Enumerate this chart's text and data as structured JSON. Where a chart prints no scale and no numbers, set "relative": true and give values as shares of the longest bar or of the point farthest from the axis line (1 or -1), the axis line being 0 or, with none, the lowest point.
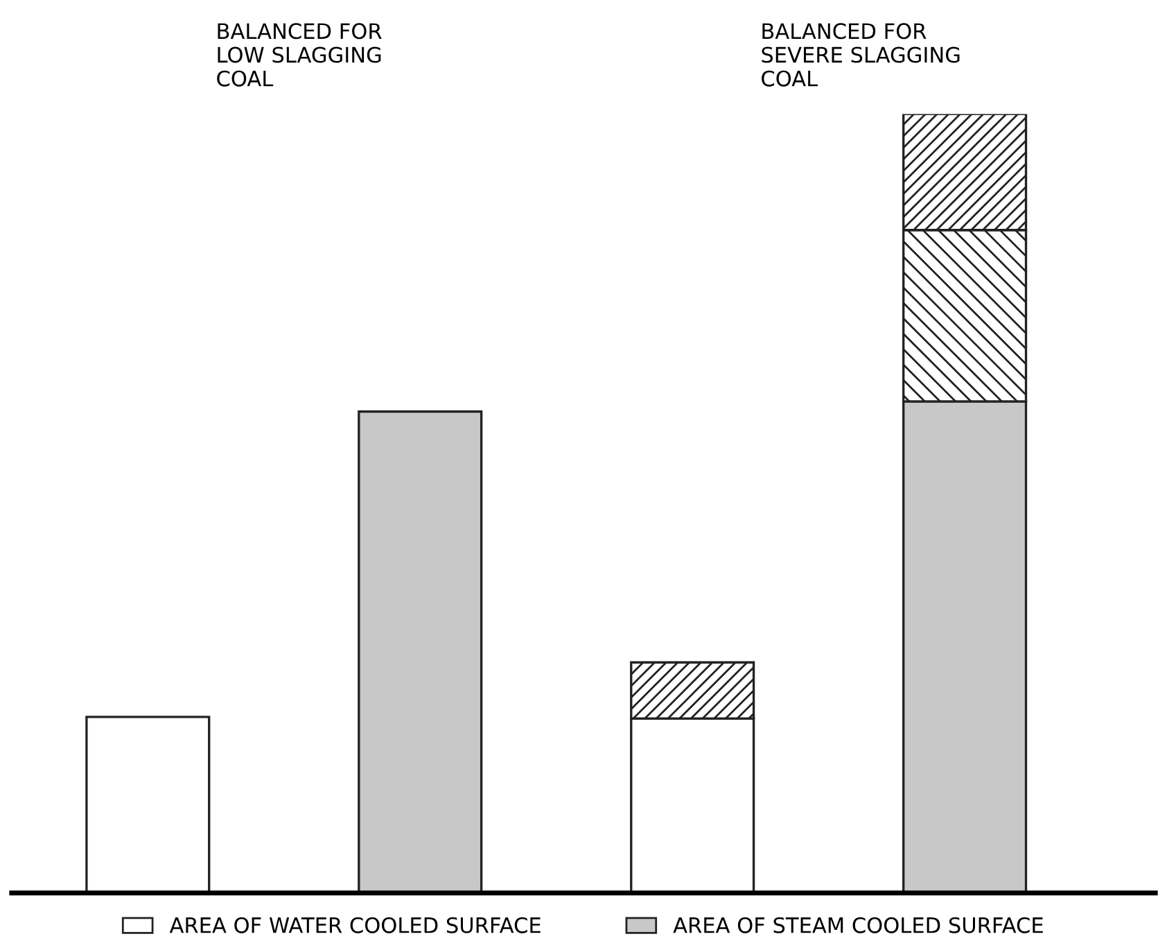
{
  "chart_data": {
    "type": "bar",
    "relative": true,
    "stacked": true,
    "categories": [
      null,
      null,
      null,
      null
    ],
    "series": [
      {
        "name": "AREA OF WATER COOLED SURFACE",
        "color": "#ffffff",
        "values": [
          0.226,
          null,
          0.224,
          null
        ]
      },
      {
        "name": "AREA OF STEAM COOLED SURFACE",
        "color": "#c8c8c8",
        "values": [
          null,
          0.618,
          null,
          0.631
        ]
      },
      {
        "color": "#222222",
        "values": [
          null,
          null,
          null,
          0.22
        ]
      },
      {
        "color": "#222222",
        "values": [
          null,
          null,
          0.072,
          0.149
        ]
      }
    ],
    "annotations": [
      "BALANCED FOR\nLOW SLAGGING\nCOAL",
      "BALANCED FOR\nSEVERE SLAGGING\nCOAL"
    ],
    "legend": "bottom"
  }
}
